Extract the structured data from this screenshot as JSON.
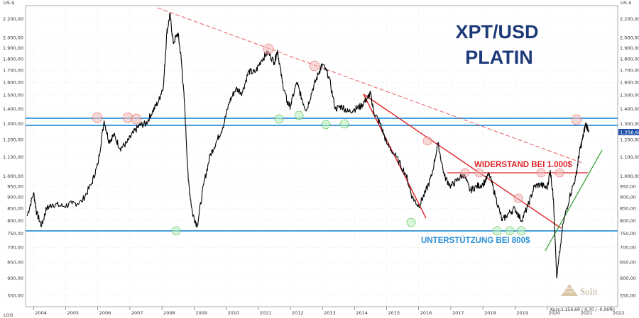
{
  "chart_data": {
    "type": "line",
    "title": "XPT/USD",
    "subtitle": "PLATIN",
    "y_unit_label": "US-$",
    "scale_label": "LOG",
    "ylim": [
      520,
      2350
    ],
    "xlim": [
      2003.75,
      2022.2
    ],
    "y_ticks": [
      550,
      600,
      650,
      700,
      750,
      800,
      850,
      900,
      950,
      1000,
      1100,
      1200,
      1300,
      1400,
      1500,
      1600,
      1700,
      1800,
      1900,
      2000,
      2200
    ],
    "y_tick_labels": [
      "550,00",
      "600,00",
      "650,00",
      "700,00",
      "750,00",
      "800,00",
      "850,00",
      "900,00",
      "950,00",
      "1.000,00",
      "1.100,00",
      "1.200,00",
      "1.300,00",
      "1.400,00",
      "1.500,00",
      "1.600,00",
      "1.700,00",
      "1.800,00",
      "1.900,00",
      "2.000,00",
      "2.200,00"
    ],
    "x_ticks": [
      2004,
      2005,
      2006,
      2007,
      2008,
      2009,
      2010,
      2011,
      2012,
      2013,
      2014,
      2015,
      2016,
      2017,
      2018,
      2019,
      2020,
      2021,
      2022
    ],
    "x_tick_labels": [
      "2004",
      "2005",
      "2006",
      "2007",
      "2008",
      "2009",
      "2010",
      "2011",
      "2012",
      "2013",
      "2014",
      "2015",
      "2016",
      "2017",
      "2018",
      "2019",
      "2020",
      "2021",
      "2022"
    ],
    "current_price_label": "1.256,60",
    "footer_text": "Kurs:1.256,60 (-0,70 / -0,06%)",
    "brand": "Solit",
    "grid": true,
    "series": [
      {
        "color": "#000000",
        "x": [
          2003.8,
          2004.0,
          2004.1,
          2004.25,
          2004.4,
          2004.6,
          2004.9,
          2005.2,
          2005.5,
          2005.8,
          2006.0,
          2006.2,
          2006.35,
          2006.5,
          2006.7,
          2006.9,
          2007.1,
          2007.3,
          2007.5,
          2007.7,
          2007.9,
          2008.05,
          2008.15,
          2008.25,
          2008.35,
          2008.5,
          2008.6,
          2008.7,
          2008.82,
          2008.95,
          2009.1,
          2009.3,
          2009.5,
          2009.7,
          2009.9,
          2010.1,
          2010.3,
          2010.5,
          2010.7,
          2010.9,
          2011.1,
          2011.3,
          2011.5,
          2011.6,
          2011.75,
          2011.9,
          2012.0,
          2012.2,
          2012.35,
          2012.5,
          2012.7,
          2012.9,
          2013.0,
          2013.2,
          2013.4,
          2013.6,
          2013.8,
          2014.0,
          2014.2,
          2014.4,
          2014.5,
          2014.6,
          2014.8,
          2015.0,
          2015.3,
          2015.6,
          2015.8,
          2016.0,
          2016.2,
          2016.4,
          2016.6,
          2016.8,
          2017.0,
          2017.2,
          2017.4,
          2017.6,
          2017.8,
          2018.0,
          2018.2,
          2018.4,
          2018.6,
          2018.8,
          2019.0,
          2019.2,
          2019.4,
          2019.6,
          2019.8,
          2020.0,
          2020.1,
          2020.2,
          2020.3,
          2020.5,
          2020.7,
          2020.9,
          2021.0,
          2021.1,
          2021.2,
          2021.3
        ],
        "y": [
          820,
          920,
          830,
          780,
          850,
          870,
          860,
          870,
          880,
          960,
          1060,
          1320,
          1190,
          1230,
          1150,
          1180,
          1240,
          1290,
          1300,
          1380,
          1460,
          1580,
          2050,
          2250,
          1950,
          2050,
          1800,
          1450,
          980,
          830,
          780,
          960,
          1110,
          1190,
          1280,
          1450,
          1550,
          1520,
          1690,
          1680,
          1790,
          1860,
          1770,
          1880,
          1600,
          1450,
          1420,
          1600,
          1480,
          1390,
          1550,
          1690,
          1750,
          1650,
          1400,
          1420,
          1380,
          1400,
          1420,
          1480,
          1510,
          1380,
          1300,
          1180,
          1100,
          1010,
          900,
          860,
          920,
          1000,
          1180,
          1000,
          950,
          980,
          1010,
          930,
          950,
          960,
          1010,
          900,
          800,
          830,
          850,
          800,
          860,
          950,
          960,
          940,
          1030,
          890,
          600,
          790,
          900,
          1000,
          1120,
          1200,
          1300,
          1260
        ]
      }
    ],
    "annotations": [
      {
        "label": "WIDERSTAND BEI 1.000$",
        "color": "#e0242a"
      },
      {
        "label": "UNTERSTÜTZUNG BEI  800$",
        "color": "#2b8fd6"
      }
    ]
  }
}
